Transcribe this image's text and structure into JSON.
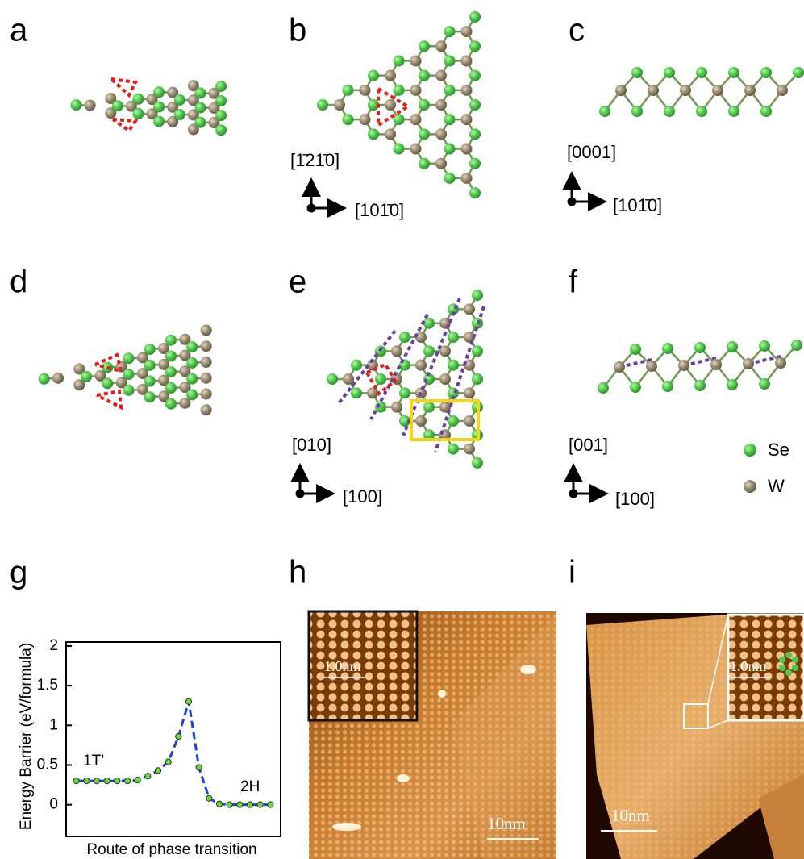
{
  "labels": [
    "a",
    "b",
    "c",
    "d",
    "e",
    "f",
    "g",
    "h",
    "i"
  ],
  "directions": {
    "b": [
      "[1̄21̄0]",
      "[101̄0]"
    ],
    "c": [
      "[0001]",
      "[101̄0]"
    ],
    "e": [
      "[010]",
      "[100]"
    ],
    "f": [
      "[001]",
      "[100]"
    ]
  },
  "legend": [
    "Se",
    "W"
  ],
  "images": {
    "h": {
      "inset_scale": "1.0nm",
      "scale": "10nm"
    },
    "i": {
      "inset_scale": "1.0nm",
      "scale": "10nm"
    }
  },
  "chart_data": {
    "type": "line",
    "ylabel": "Energy Barrier (eV/formula)",
    "xlabel": "Route of phase transition",
    "x": [
      1,
      2,
      3,
      4,
      5,
      6,
      7,
      8,
      9,
      10,
      11,
      12,
      13,
      14,
      15,
      16,
      17,
      18,
      19,
      20
    ],
    "values": [
      0.3,
      0.3,
      0.3,
      0.3,
      0.3,
      0.3,
      0.31,
      0.36,
      0.43,
      0.54,
      0.86,
      1.3,
      0.47,
      0.08,
      0.01,
      0,
      0,
      0,
      0,
      0
    ],
    "xlim": [
      0,
      21
    ],
    "ylim": [
      -0.4,
      2.05
    ],
    "yticks": [
      0,
      0.5,
      1,
      1.5,
      2
    ],
    "color": "#1f3fe0",
    "marker_color": "#6fd34a",
    "annotations": [
      "1T’",
      "2H"
    ]
  }
}
